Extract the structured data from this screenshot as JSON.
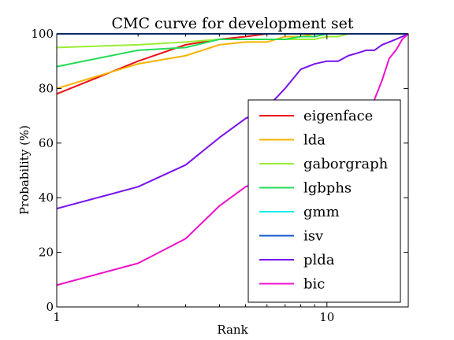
{
  "chart_data": {
    "type": "line",
    "title": "CMC curve for development set",
    "xlabel": "Rank",
    "ylabel": "Probability (%)",
    "x_scale": "log",
    "xlim": [
      1,
      20
    ],
    "ylim": [
      0,
      100
    ],
    "x_ticks": [
      1,
      10
    ],
    "x_tick_labels": [
      "1",
      "10"
    ],
    "y_ticks": [
      0,
      20,
      40,
      60,
      80,
      100
    ],
    "y_tick_labels": [
      "0",
      "20",
      "40",
      "60",
      "80",
      "100"
    ],
    "grid": false,
    "legend_position": "lower-right",
    "series": [
      {
        "name": "eigenface",
        "color": "#ee1111",
        "x": [
          1,
          2,
          3,
          4,
          5,
          6,
          7,
          8,
          9,
          10,
          20
        ],
        "y": [
          78,
          90,
          96,
          98,
          99,
          100,
          100,
          100,
          100,
          100,
          100
        ]
      },
      {
        "name": "lda",
        "color": "#f5b400",
        "x": [
          1,
          2,
          3,
          4,
          5,
          6,
          7,
          8,
          9,
          10,
          20
        ],
        "y": [
          80,
          89,
          92,
          96,
          97,
          97,
          99,
          99,
          100,
          100,
          100
        ]
      },
      {
        "name": "gaborgraph",
        "color": "#99ee33",
        "x": [
          1,
          2,
          3,
          4,
          5,
          6,
          7,
          8,
          9,
          10,
          11,
          12,
          20
        ],
        "y": [
          95,
          96,
          97,
          98,
          98,
          98,
          98,
          98,
          98,
          99,
          99,
          100,
          100
        ]
      },
      {
        "name": "lgbphs",
        "color": "#22dd55",
        "x": [
          1,
          2,
          3,
          4,
          5,
          6,
          7,
          8,
          9,
          10,
          20
        ],
        "y": [
          88,
          94,
          95,
          98,
          98,
          98,
          98,
          99,
          99,
          100,
          100
        ]
      },
      {
        "name": "gmm",
        "color": "#11eeee",
        "x": [
          1,
          20
        ],
        "y": [
          100,
          100
        ]
      },
      {
        "name": "isv",
        "color": "#1155cc",
        "x": [
          1,
          20
        ],
        "y": [
          100,
          100
        ]
      },
      {
        "name": "plda",
        "color": "#7711ee",
        "x": [
          1,
          2,
          3,
          4,
          5,
          6,
          7,
          8,
          9,
          10,
          11,
          12,
          13,
          14,
          15,
          16,
          17,
          18,
          19,
          20
        ],
        "y": [
          36,
          44,
          52,
          62,
          69,
          73,
          80,
          87,
          89,
          90,
          90,
          92,
          93,
          94,
          94,
          96,
          97,
          98,
          99,
          100
        ]
      },
      {
        "name": "bic",
        "color": "#ee11cc",
        "x": [
          1,
          2,
          3,
          4,
          5,
          6,
          7,
          8,
          9,
          10,
          11,
          12,
          13,
          14,
          15,
          16,
          17,
          18,
          19,
          20
        ],
        "y": [
          8,
          16,
          25,
          37,
          44,
          47,
          50,
          53,
          55,
          57,
          59,
          62,
          66,
          70,
          76,
          83,
          91,
          94,
          98,
          100
        ]
      }
    ]
  }
}
